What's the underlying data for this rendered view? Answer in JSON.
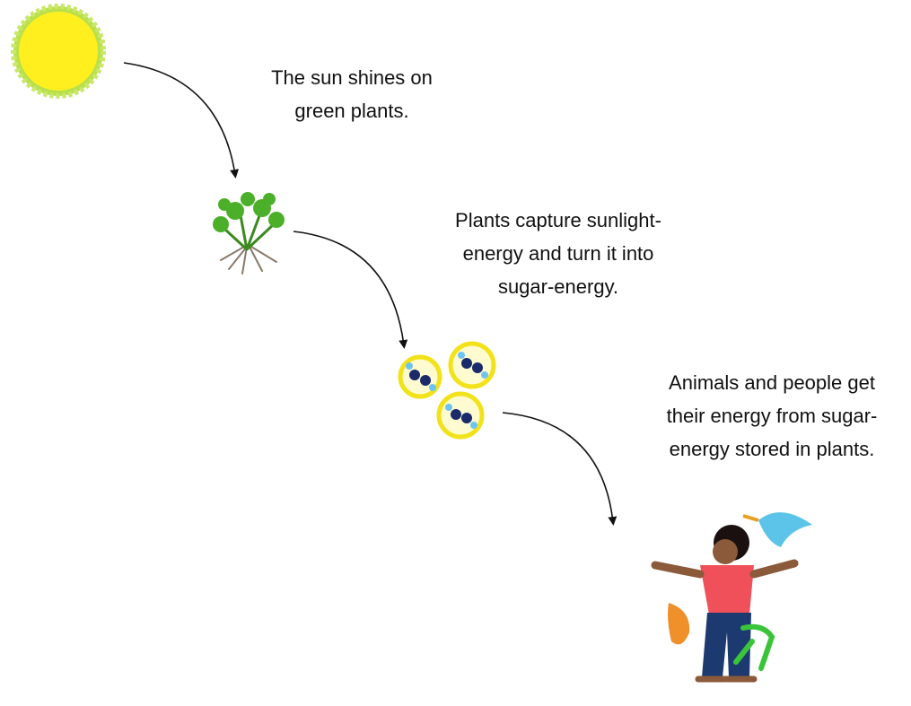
{
  "steps": [
    {
      "lines": [
        "The sun shines on",
        "green plants."
      ]
    },
    {
      "lines": [
        "Plants capture sunlight-",
        "energy and turn it into",
        "sugar-energy."
      ]
    },
    {
      "lines": [
        "Animals and people get",
        "their energy from sugar-",
        "energy stored in plants."
      ]
    }
  ]
}
